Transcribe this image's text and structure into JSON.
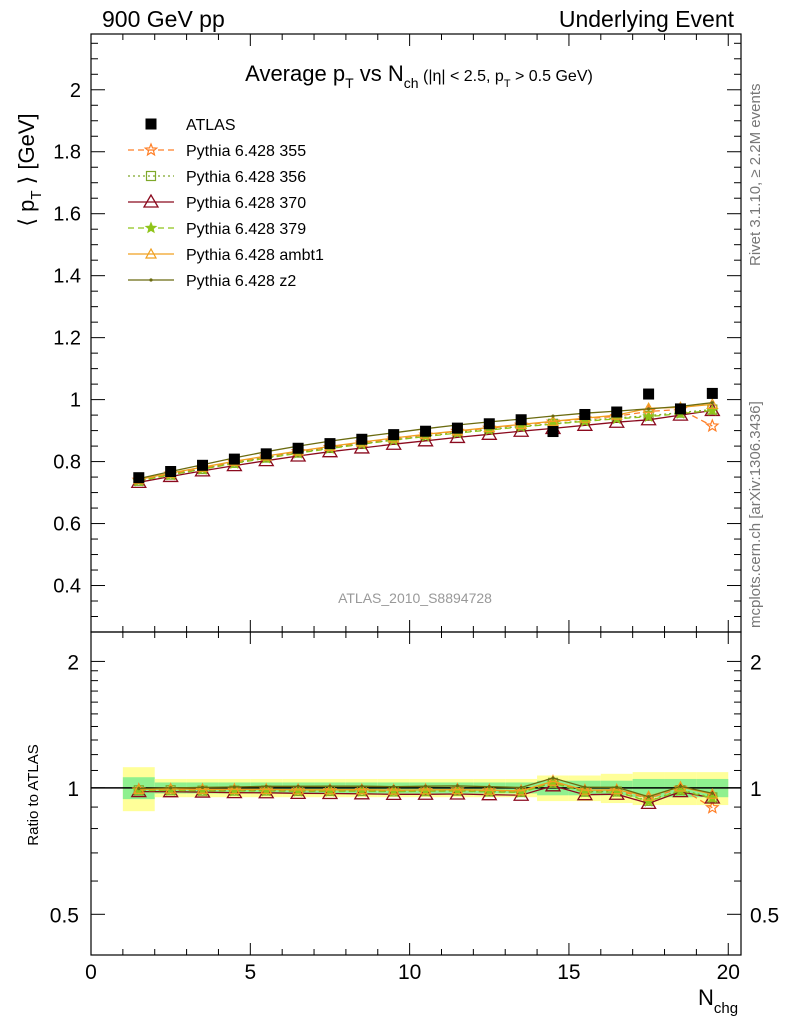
{
  "header": {
    "left": "900 GeV pp",
    "right": "Underlying Event"
  },
  "side_labels": {
    "rivet": "Rivet 3.1.10, ≥ 2.2M events",
    "mcplots": "mcplots.cern.ch [arXiv:1306.3436]"
  },
  "chart_data": [
    {
      "type": "line",
      "title": {
        "main": "Average p",
        "sub1": "T",
        "mid": " vs N",
        "sub2": "ch",
        "cut": " (|η| < 2.5, p",
        "sub3": "T",
        "tail": " > 0.5 GeV)"
      },
      "ylabel": {
        "pre": "⟨ p",
        "sub": "T",
        "post": " ⟩ [GeV]"
      },
      "ylim": [
        0.25,
        2.18
      ],
      "xlim": [
        0,
        20.4
      ],
      "yticks": [
        "0.4",
        "0.6",
        "0.8",
        "1",
        "1.2",
        "1.4",
        "1.6",
        "1.8",
        "2"
      ],
      "watermark": "ATLAS_2010_S8894728",
      "legend_position": "top-left",
      "x": [
        1.5,
        2.5,
        3.5,
        4.5,
        5.5,
        6.5,
        7.5,
        8.5,
        9.5,
        10.5,
        11.5,
        12.5,
        13.5,
        14.5,
        15.5,
        16.5,
        17.5,
        18.5,
        19.5
      ],
      "data": {
        "name": "ATLAS",
        "values": [
          0.748,
          0.768,
          0.788,
          0.808,
          0.825,
          0.843,
          0.858,
          0.872,
          0.887,
          0.898,
          0.908,
          0.922,
          0.935,
          0.897,
          0.952,
          0.96,
          1.018,
          0.97,
          1.02
        ],
        "errors": [
          0.005,
          0.005,
          0.005,
          0.005,
          0.005,
          0.005,
          0.005,
          0.005,
          0.005,
          0.005,
          0.005,
          0.005,
          0.006,
          0.008,
          0.008,
          0.009,
          0.01,
          0.01,
          0.011
        ],
        "color": "#000000"
      },
      "series": [
        {
          "name": "Pythia 6.428 355",
          "color": "#ff7f27",
          "dash": "6,4",
          "marker": "star-open",
          "values": [
            0.74,
            0.76,
            0.778,
            0.798,
            0.815,
            0.832,
            0.846,
            0.86,
            0.873,
            0.886,
            0.898,
            0.908,
            0.918,
            0.928,
            0.938,
            0.946,
            0.962,
            0.968,
            0.915
          ]
        },
        {
          "name": "Pythia 6.428 356",
          "color": "#7fa82a",
          "dash": "2,3",
          "marker": "square-open",
          "values": [
            0.738,
            0.758,
            0.776,
            0.796,
            0.813,
            0.829,
            0.844,
            0.857,
            0.87,
            0.882,
            0.894,
            0.904,
            0.914,
            0.922,
            0.932,
            0.941,
            0.948,
            0.958,
            0.968
          ]
        },
        {
          "name": "Pythia 6.428 370",
          "color": "#8b0a1e",
          "dash": "",
          "marker": "triangle-open-big",
          "values": [
            0.733,
            0.752,
            0.77,
            0.787,
            0.803,
            0.818,
            0.832,
            0.844,
            0.856,
            0.867,
            0.878,
            0.888,
            0.898,
            0.907,
            0.917,
            0.927,
            0.935,
            0.95,
            0.965
          ]
        },
        {
          "name": "Pythia 6.428 379",
          "color": "#8fc41a",
          "dash": "6,4",
          "marker": "star-filled",
          "values": [
            0.737,
            0.757,
            0.775,
            0.794,
            0.811,
            0.827,
            0.842,
            0.856,
            0.869,
            0.881,
            0.892,
            0.902,
            0.912,
            0.921,
            0.93,
            0.938,
            0.945,
            0.955,
            0.965
          ]
        },
        {
          "name": "Pythia 6.428 ambt1",
          "color": "#f0a020",
          "dash": "",
          "marker": "triangle-open",
          "values": [
            0.742,
            0.763,
            0.782,
            0.801,
            0.818,
            0.834,
            0.849,
            0.863,
            0.876,
            0.888,
            0.899,
            0.91,
            0.92,
            0.93,
            0.94,
            0.95,
            0.972,
            0.975,
            0.985
          ]
        },
        {
          "name": "Pythia 6.428 z2",
          "color": "#6b6b10",
          "dash": "",
          "marker": "dot",
          "values": [
            0.745,
            0.768,
            0.79,
            0.812,
            0.832,
            0.85,
            0.866,
            0.88,
            0.893,
            0.906,
            0.918,
            0.928,
            0.937,
            0.947,
            0.956,
            0.963,
            0.97,
            0.978,
            0.99
          ]
        }
      ]
    },
    {
      "type": "line",
      "ylabel": "Ratio to ATLAS",
      "ylim": [
        0.4,
        2.35
      ],
      "log_y": true,
      "yticks": [
        "0.5",
        "1",
        "2"
      ],
      "xlabel": {
        "main": "N",
        "sub": "chg"
      },
      "xticks": [
        "0",
        "5",
        "10",
        "15",
        "20"
      ],
      "band_inner_color": "#8ff08f",
      "band_outer_color": "#ffff99",
      "band_inner": [
        0.06,
        0.03,
        0.03,
        0.03,
        0.03,
        0.03,
        0.03,
        0.03,
        0.03,
        0.03,
        0.03,
        0.03,
        0.03,
        0.04,
        0.04,
        0.04,
        0.05,
        0.05,
        0.05
      ],
      "band_outer": [
        0.12,
        0.05,
        0.05,
        0.05,
        0.05,
        0.05,
        0.05,
        0.05,
        0.05,
        0.05,
        0.05,
        0.05,
        0.05,
        0.07,
        0.07,
        0.08,
        0.09,
        0.09,
        0.09
      ]
    }
  ]
}
